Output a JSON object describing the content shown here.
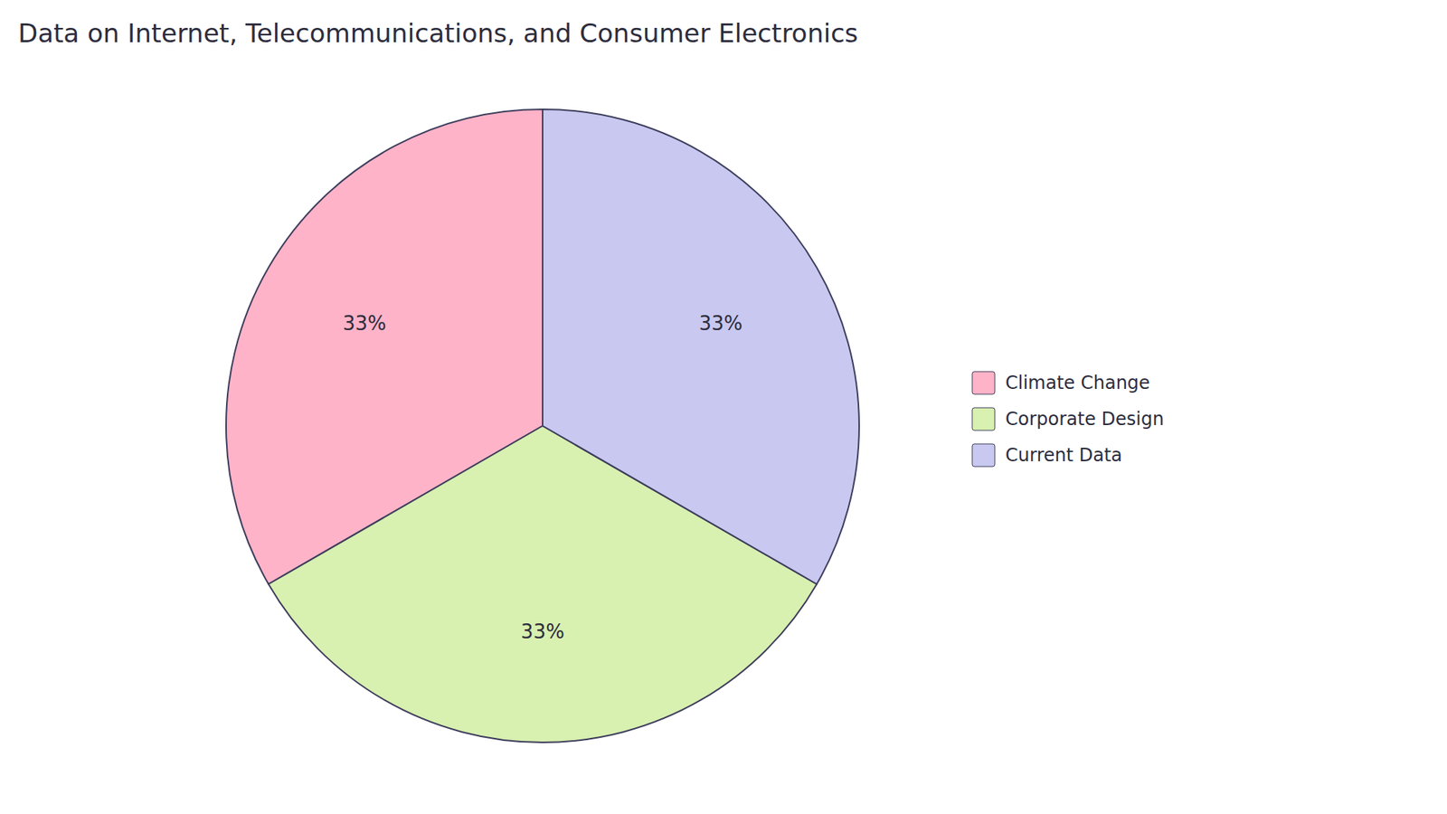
{
  "chart_data": {
    "type": "pie",
    "title": "Data on Internet, Telecommunications, and Consumer Electronics",
    "categories": [
      "Climate Change",
      "Corporate Design",
      "Current Data"
    ],
    "values": [
      33,
      33,
      33
    ],
    "value_labels": [
      "33%",
      "33%",
      "33%"
    ],
    "colors": [
      "#FFB3C8",
      "#D8F0B0",
      "#C8C8F0"
    ],
    "data_labels": true,
    "legend": "right"
  }
}
